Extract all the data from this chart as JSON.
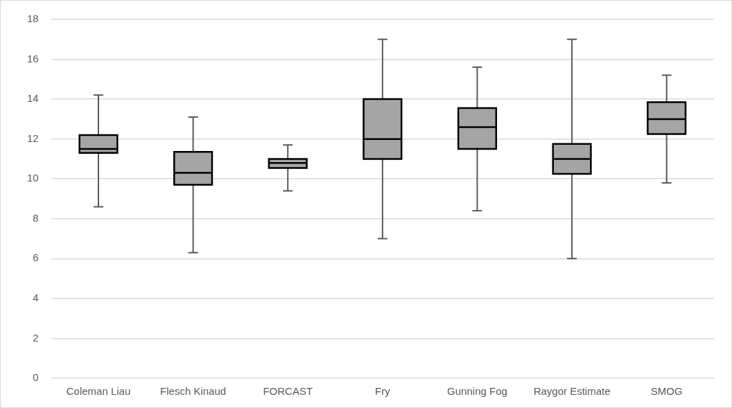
{
  "chart_data": {
    "type": "box",
    "categories": [
      "Coleman Liau",
      "Flesch Kinaud",
      "FORCAST",
      "Fry",
      "Gunning Fog",
      "Raygor Estimate",
      "SMOG"
    ],
    "boxes": [
      {
        "low": 8.6,
        "q1": 11.3,
        "median": 11.5,
        "q3": 12.2,
        "high": 14.2
      },
      {
        "low": 6.3,
        "q1": 9.7,
        "median": 10.3,
        "q3": 11.35,
        "high": 13.1
      },
      {
        "low": 9.4,
        "q1": 10.55,
        "median": 10.8,
        "q3": 11.0,
        "high": 11.7
      },
      {
        "low": 7,
        "q1": 11,
        "median": 12,
        "q3": 14,
        "high": 17
      },
      {
        "low": 8.4,
        "q1": 11.5,
        "median": 12.6,
        "q3": 13.55,
        "high": 15.6
      },
      {
        "low": 6,
        "q1": 10.25,
        "median": 11,
        "q3": 11.75,
        "high": 17
      },
      {
        "low": 9.8,
        "q1": 12.25,
        "median": 13,
        "q3": 13.85,
        "high": 15.2
      }
    ],
    "color": "#a5a5a5",
    "ylim": [
      0,
      18
    ],
    "yticks": [
      0,
      2,
      4,
      6,
      8,
      10,
      12,
      14,
      16,
      18
    ],
    "grid": "y",
    "legend": false
  }
}
